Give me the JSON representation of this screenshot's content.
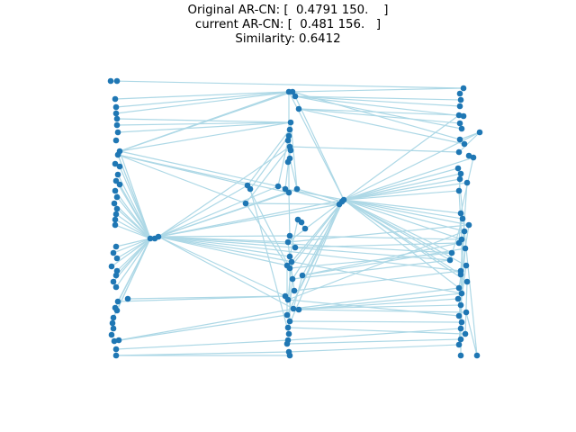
{
  "title": {
    "line1": "Original AR-CN: [  0.4791 150.    ]",
    "line2": "current AR-CN: [  0.481 156.   ]",
    "line3": "Similarity: 0.6412"
  },
  "colors": {
    "node": "#1f77b4",
    "edge": "#add8e6",
    "background": "#ffffff"
  }
}
